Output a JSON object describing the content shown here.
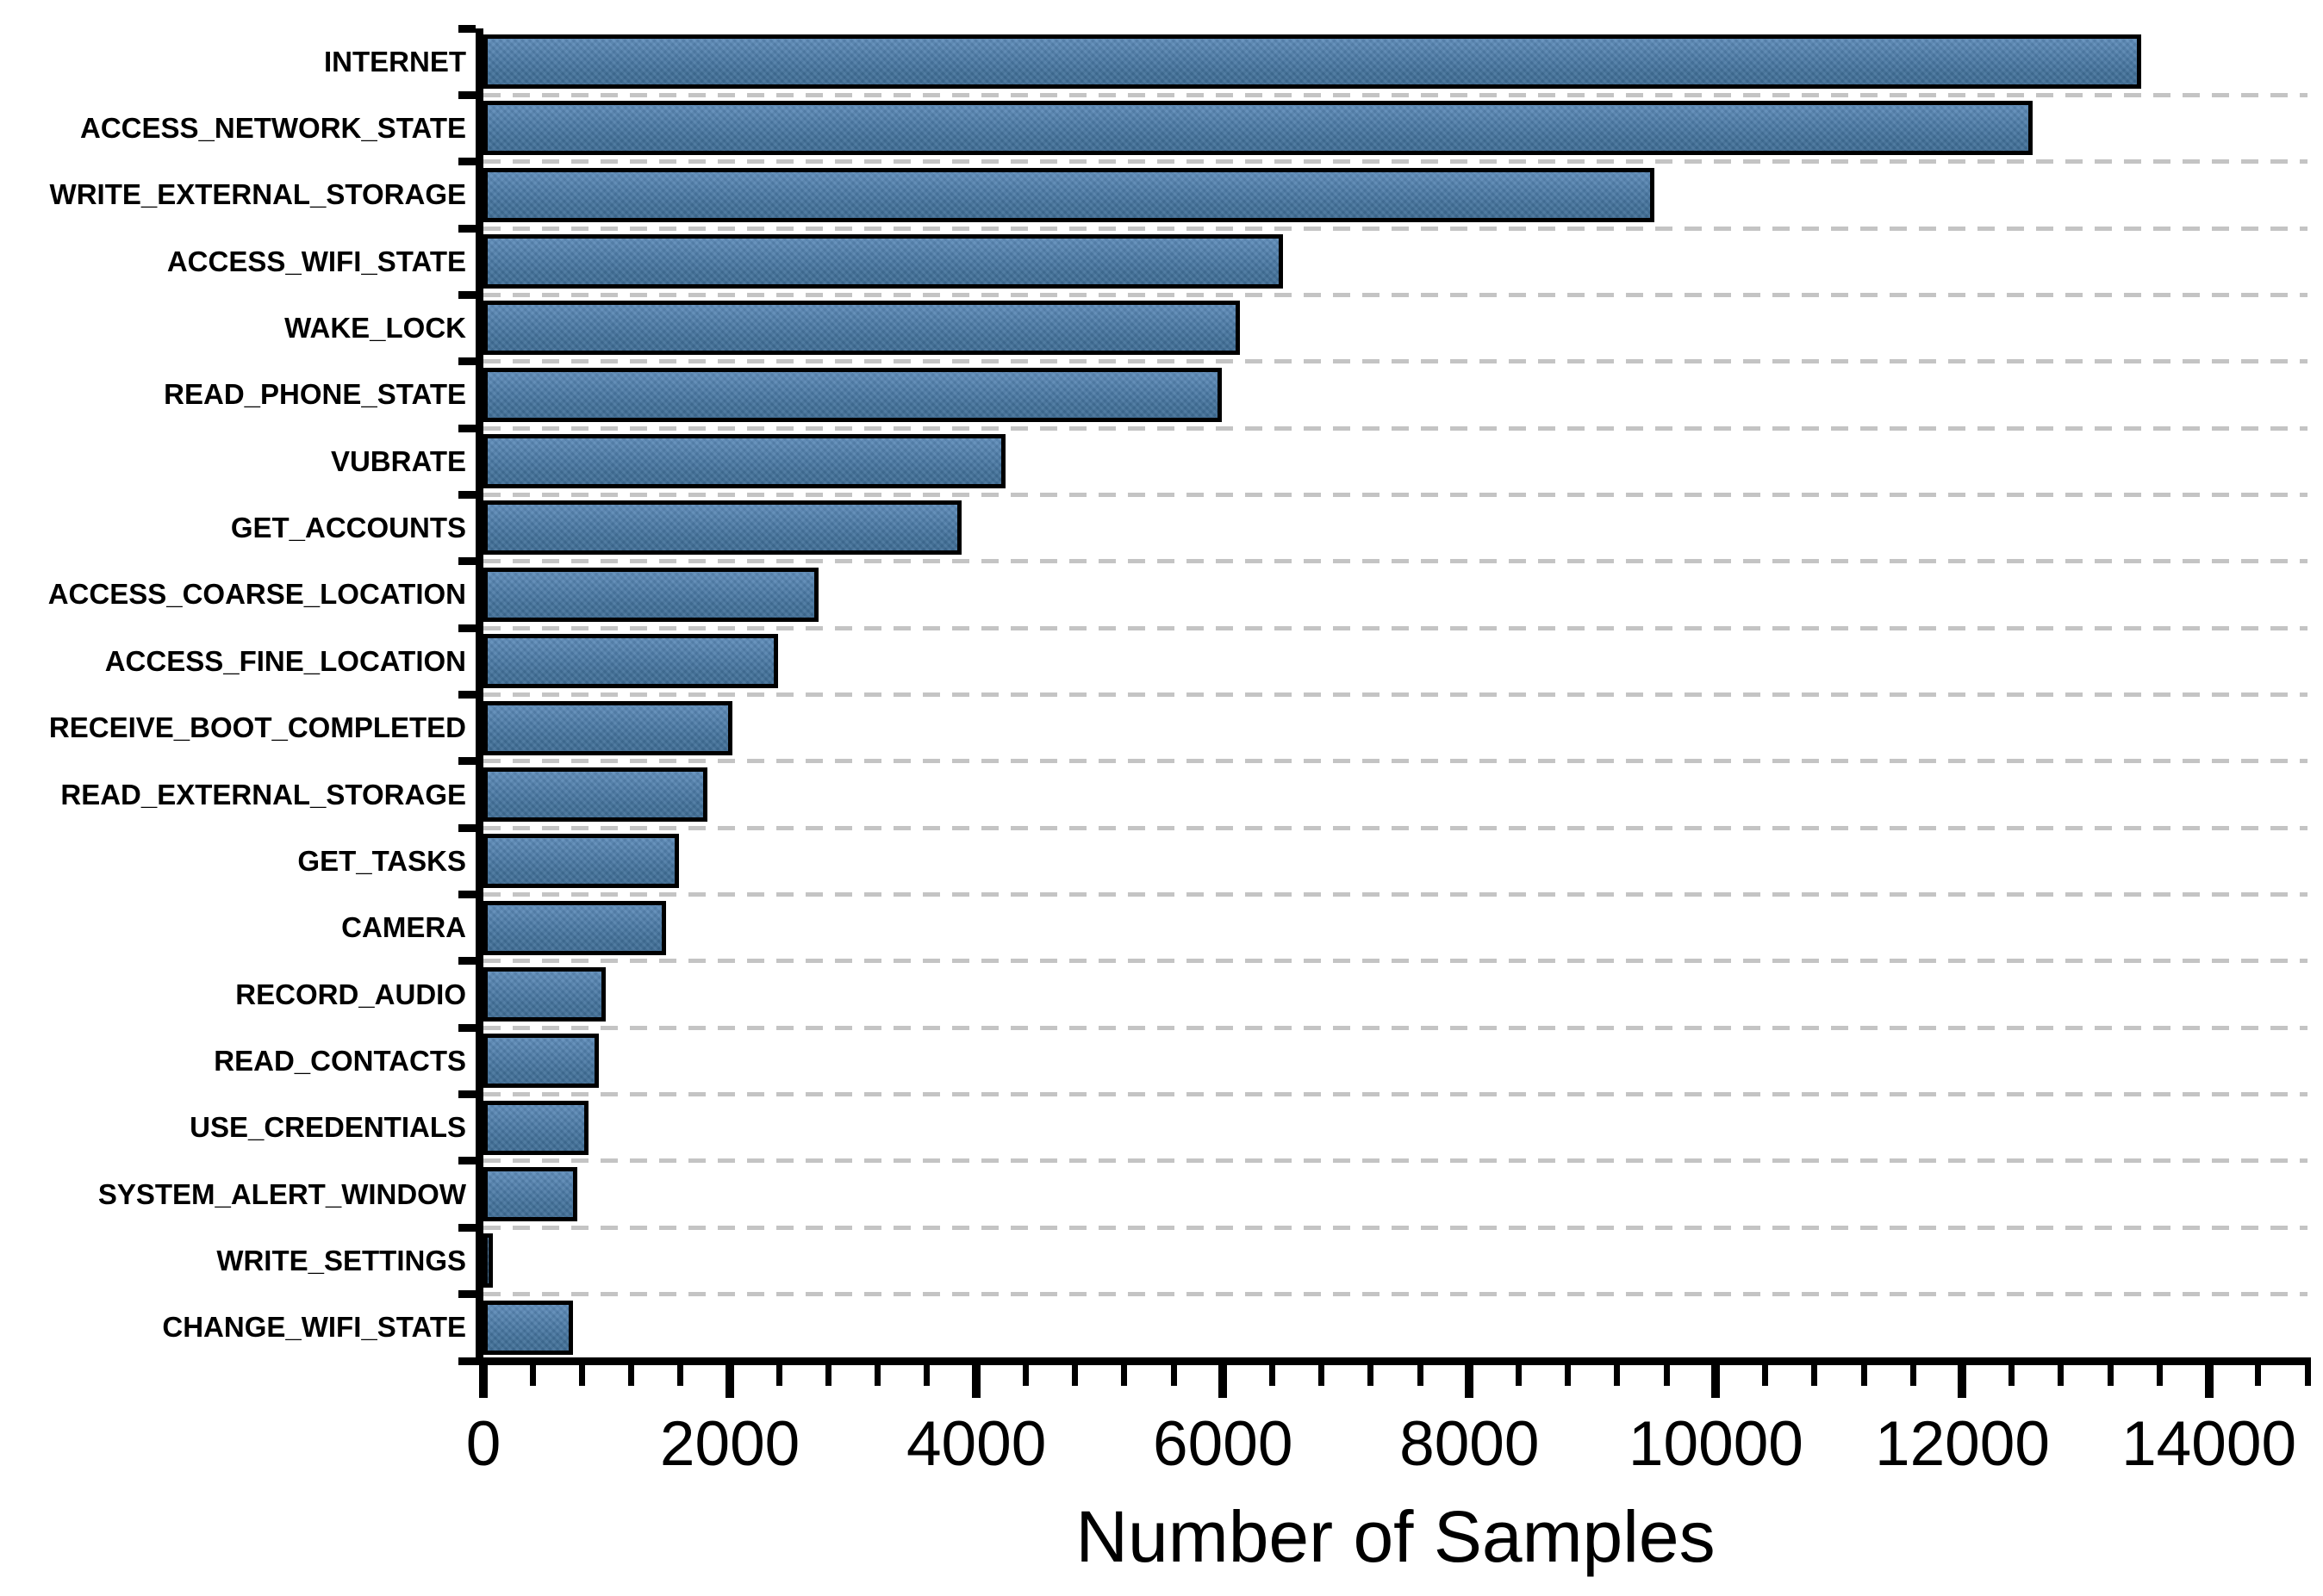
{
  "chart_data": {
    "type": "bar",
    "orientation": "horizontal",
    "title": "",
    "xlabel": "Number of Samples",
    "ylabel": "",
    "xlim": [
      0,
      14800
    ],
    "x_major_ticks": [
      0,
      2000,
      4000,
      6000,
      8000,
      10000,
      12000,
      14000
    ],
    "x_major_tick_labels": [
      "0",
      "2000",
      "4000",
      "6000",
      "8000",
      "10000",
      "12000",
      "14000"
    ],
    "x_minor_tick_interval": 400,
    "grid": "dashed horizontal gridlines at category boundaries",
    "legend_position": "none",
    "categories": [
      "INTERNET",
      "ACCESS_NETWORK_STATE",
      "WRITE_EXTERNAL_STORAGE",
      "ACCESS_WIFI_STATE",
      "WAKE_LOCK",
      "READ_PHONE_STATE",
      "VUBRATE",
      "GET_ACCOUNTS",
      "ACCESS_COARSE_LOCATION",
      "ACCESS_FINE_LOCATION",
      "RECEIVE_BOOT_COMPLETED",
      "READ_EXTERNAL_STORAGE",
      "GET_TASKS",
      "CAMERA",
      "RECORD_AUDIO",
      "READ_CONTACTS",
      "USE_CREDENTIALS",
      "SYSTEM_ALERT_WINDOW",
      "WRITE_SETTINGS",
      "CHANGE_WIFI_STATE"
    ],
    "values": [
      13450,
      12570,
      9500,
      6490,
      6140,
      5990,
      4240,
      3880,
      2720,
      2390,
      2020,
      1820,
      1590,
      1480,
      990,
      940,
      850,
      760,
      75,
      730
    ],
    "colors": {
      "bar_fill_top": "#5e8cba",
      "bar_fill_bottom": "#3f6d96",
      "bar_border": "#000000",
      "gridline": "#c4c4c4",
      "axis": "#000000",
      "text": "#000000",
      "background": "#ffffff"
    }
  }
}
